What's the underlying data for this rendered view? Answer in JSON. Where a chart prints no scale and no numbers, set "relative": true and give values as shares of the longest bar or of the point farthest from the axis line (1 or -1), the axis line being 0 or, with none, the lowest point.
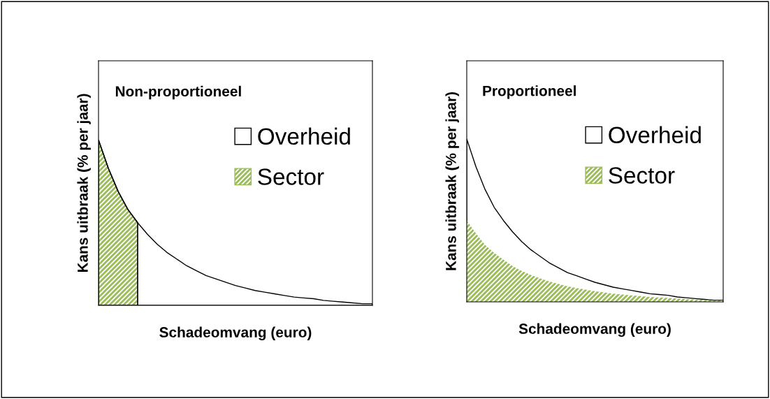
{
  "chart_data": [
    {
      "type": "area",
      "title": "Non-proportioneel",
      "xlabel": "Schadeomvang (euro)",
      "ylabel": "Kans uitbraak (% per jaar)",
      "relative": true,
      "legend": "right",
      "categories": [
        null,
        null,
        null,
        null,
        null,
        null,
        null,
        null,
        null,
        null,
        null,
        null,
        null,
        null,
        null,
        null,
        null,
        null,
        null,
        null,
        null,
        null,
        null,
        null,
        null,
        null,
        null,
        null,
        null
      ],
      "series": [
        {
          "name": "Overheid",
          "color": "#ffffff",
          "values": [
            1.0,
            0.83,
            0.69,
            0.58,
            0.5,
            0.43,
            0.37,
            0.32,
            0.28,
            0.24,
            0.21,
            0.18,
            0.16,
            0.14,
            0.12,
            0.105,
            0.09,
            0.08,
            0.07,
            0.06,
            0.05,
            0.045,
            0.04,
            0.03,
            0.025,
            0.02,
            0.015,
            0.01,
            0.01
          ]
        },
        {
          "name": "Sector",
          "color": "#9bbb59",
          "values": [
            1.0,
            0.83,
            0.69,
            0.58,
            0.5,
            null,
            null,
            null,
            null,
            null,
            null,
            null,
            null,
            null,
            null,
            null,
            null,
            null,
            null,
            null,
            null,
            null,
            null,
            null,
            null,
            null,
            null,
            null,
            null
          ]
        }
      ]
    },
    {
      "type": "area",
      "title": "Proportioneel",
      "xlabel": "Schadeomvang (euro)",
      "ylabel": "Kans uitbraak (% per jaar)",
      "relative": true,
      "legend": "right",
      "categories": [
        null,
        null,
        null,
        null,
        null,
        null,
        null,
        null,
        null,
        null,
        null,
        null,
        null,
        null,
        null,
        null,
        null,
        null,
        null,
        null,
        null,
        null,
        null,
        null,
        null,
        null,
        null,
        null,
        null
      ],
      "series": [
        {
          "name": "Overheid",
          "color": "#ffffff",
          "values": [
            1.0,
            0.83,
            0.69,
            0.58,
            0.5,
            0.43,
            0.37,
            0.32,
            0.28,
            0.24,
            0.21,
            0.18,
            0.16,
            0.14,
            0.12,
            0.105,
            0.09,
            0.08,
            0.07,
            0.06,
            0.05,
            0.045,
            0.04,
            0.03,
            0.025,
            0.02,
            0.015,
            0.01,
            0.01
          ]
        },
        {
          "name": "Sector",
          "color": "#9bbb59",
          "values": [
            0.5,
            0.42,
            0.35,
            0.3,
            0.26,
            0.22,
            0.19,
            0.165,
            0.145,
            0.125,
            0.11,
            0.095,
            0.085,
            0.075,
            0.065,
            0.058,
            0.05,
            0.045,
            0.04,
            0.035,
            0.03,
            0.027,
            0.024,
            0.02,
            0.017,
            0.014,
            0.011,
            0.008,
            0.008
          ]
        }
      ]
    }
  ]
}
